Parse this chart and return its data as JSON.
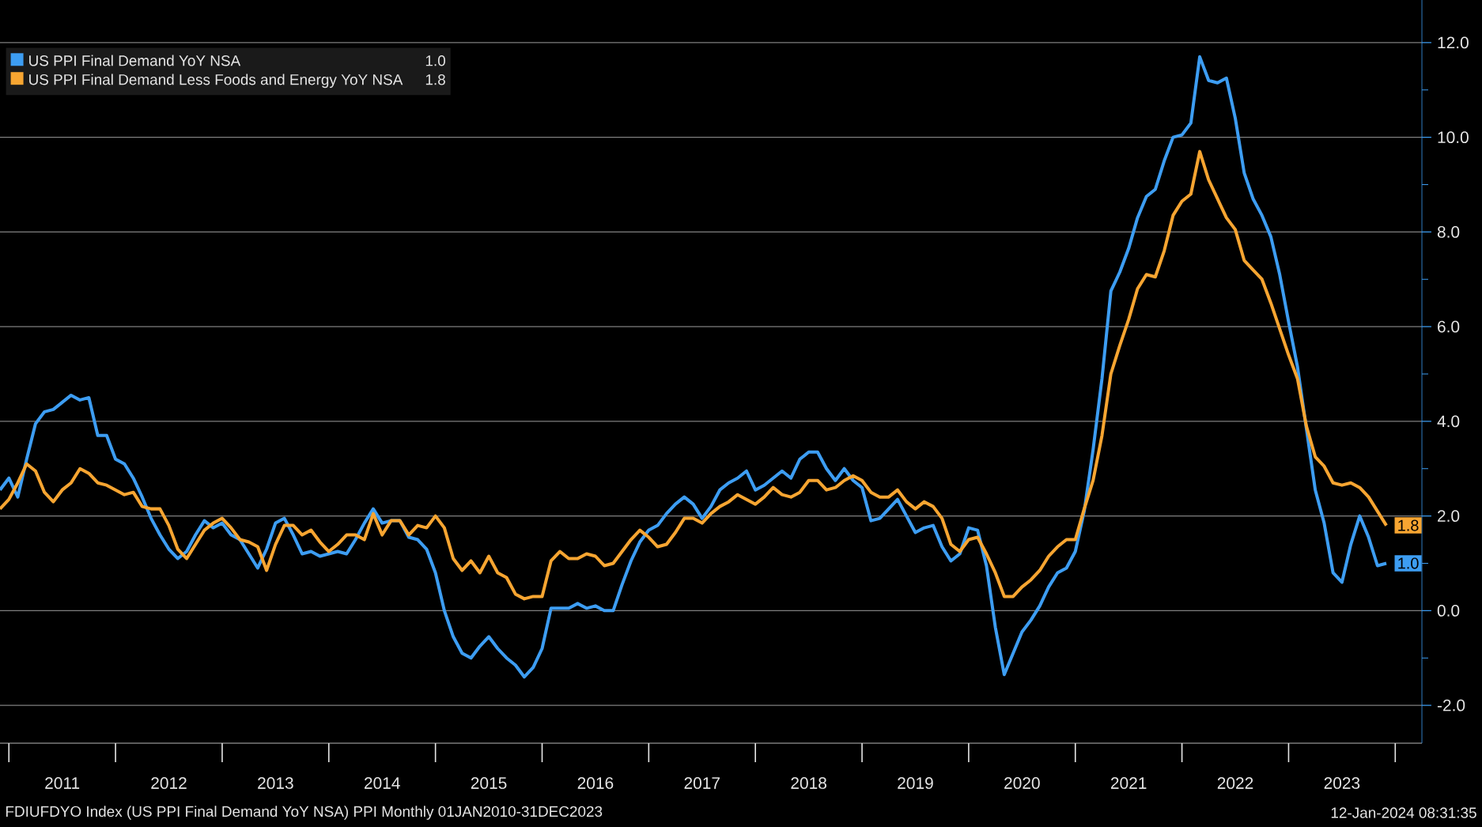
{
  "chart_data": {
    "type": "line",
    "x": [
      "2010-12",
      "2011-01",
      "2011-02",
      "2011-03",
      "2011-04",
      "2011-05",
      "2011-06",
      "2011-07",
      "2011-08",
      "2011-09",
      "2011-10",
      "2011-11",
      "2011-12",
      "2012-01",
      "2012-02",
      "2012-03",
      "2012-04",
      "2012-05",
      "2012-06",
      "2012-07",
      "2012-08",
      "2012-09",
      "2012-10",
      "2012-11",
      "2012-12",
      "2013-01",
      "2013-02",
      "2013-03",
      "2013-04",
      "2013-05",
      "2013-06",
      "2013-07",
      "2013-08",
      "2013-09",
      "2013-10",
      "2013-11",
      "2013-12",
      "2014-01",
      "2014-02",
      "2014-03",
      "2014-04",
      "2014-05",
      "2014-06",
      "2014-07",
      "2014-08",
      "2014-09",
      "2014-10",
      "2014-11",
      "2014-12",
      "2015-01",
      "2015-02",
      "2015-03",
      "2015-04",
      "2015-05",
      "2015-06",
      "2015-07",
      "2015-08",
      "2015-09",
      "2015-10",
      "2015-11",
      "2015-12",
      "2016-01",
      "2016-02",
      "2016-03",
      "2016-04",
      "2016-05",
      "2016-06",
      "2016-07",
      "2016-08",
      "2016-09",
      "2016-10",
      "2016-11",
      "2016-12",
      "2017-01",
      "2017-02",
      "2017-03",
      "2017-04",
      "2017-05",
      "2017-06",
      "2017-07",
      "2017-08",
      "2017-09",
      "2017-10",
      "2017-11",
      "2017-12",
      "2018-01",
      "2018-02",
      "2018-03",
      "2018-04",
      "2018-05",
      "2018-06",
      "2018-07",
      "2018-08",
      "2018-09",
      "2018-10",
      "2018-11",
      "2018-12",
      "2019-01",
      "2019-02",
      "2019-03",
      "2019-04",
      "2019-05",
      "2019-06",
      "2019-07",
      "2019-08",
      "2019-09",
      "2019-10",
      "2019-11",
      "2019-12",
      "2020-01",
      "2020-02",
      "2020-03",
      "2020-04",
      "2020-05",
      "2020-06",
      "2020-07",
      "2020-08",
      "2020-09",
      "2020-10",
      "2020-11",
      "2020-12",
      "2021-01",
      "2021-02",
      "2021-03",
      "2021-04",
      "2021-05",
      "2021-06",
      "2021-07",
      "2021-08",
      "2021-09",
      "2021-10",
      "2021-11",
      "2021-12",
      "2022-01",
      "2022-02",
      "2022-03",
      "2022-04",
      "2022-05",
      "2022-06",
      "2022-07",
      "2022-08",
      "2022-09",
      "2022-10",
      "2022-11",
      "2022-12",
      "2023-01",
      "2023-02",
      "2023-03",
      "2023-04",
      "2023-05",
      "2023-06",
      "2023-07",
      "2023-08",
      "2023-09",
      "2023-10",
      "2023-11",
      "2023-12"
    ],
    "series": [
      {
        "name": "US PPI Final Demand YoY NSA",
        "color": "#3d9df2",
        "values": [
          2.55,
          2.8,
          2.4,
          3.2,
          3.95,
          4.2,
          4.25,
          4.4,
          4.55,
          4.45,
          4.5,
          3.7,
          3.7,
          3.2,
          3.1,
          2.8,
          2.4,
          1.95,
          1.6,
          1.3,
          1.1,
          1.25,
          1.6,
          1.9,
          1.75,
          1.85,
          1.6,
          1.5,
          1.2,
          0.9,
          1.3,
          1.85,
          1.95,
          1.6,
          1.2,
          1.25,
          1.15,
          1.2,
          1.25,
          1.2,
          1.5,
          1.85,
          2.15,
          1.85,
          1.9,
          1.9,
          1.55,
          1.5,
          1.3,
          0.8,
          0.0,
          -0.55,
          -0.9,
          -1.0,
          -0.75,
          -0.55,
          -0.8,
          -1.0,
          -1.15,
          -1.4,
          -1.2,
          -0.8,
          0.05,
          0.05,
          0.05,
          0.15,
          0.05,
          0.1,
          0.0,
          0.0,
          0.55,
          1.05,
          1.45,
          1.7,
          1.8,
          2.05,
          2.25,
          2.4,
          2.25,
          1.95,
          2.2,
          2.55,
          2.7,
          2.8,
          2.95,
          2.55,
          2.65,
          2.8,
          2.95,
          2.8,
          3.2,
          3.35,
          3.35,
          3.0,
          2.75,
          3.0,
          2.75,
          2.6,
          1.9,
          1.95,
          2.15,
          2.35,
          2.0,
          1.65,
          1.75,
          1.8,
          1.35,
          1.05,
          1.2,
          1.75,
          1.7,
          0.95,
          -0.35,
          -1.35,
          -0.9,
          -0.45,
          -0.2,
          0.1,
          0.5,
          0.8,
          0.9,
          1.25,
          2.1,
          3.4,
          4.9,
          6.75,
          7.15,
          7.65,
          8.3,
          8.75,
          8.9,
          9.5,
          10.0,
          10.05,
          10.3,
          11.7,
          11.2,
          11.15,
          11.25,
          10.4,
          9.25,
          8.7,
          8.35,
          7.9,
          7.1,
          6.1,
          5.15,
          3.85,
          2.55,
          1.85,
          0.8,
          0.6,
          1.4,
          2.0,
          1.55,
          0.95,
          1.0
        ],
        "value_labels": [
          null,
          null,
          null,
          null,
          null,
          null,
          null,
          null,
          null,
          null,
          null,
          null,
          null,
          null,
          null,
          null,
          null,
          null,
          null,
          null,
          null,
          null,
          null,
          null,
          null,
          null,
          null,
          null,
          null,
          null,
          null,
          null,
          null,
          null,
          null,
          null,
          null,
          null,
          null,
          null,
          null,
          null,
          null,
          null,
          null,
          null,
          null,
          null,
          null,
          null,
          null,
          null,
          null,
          null,
          null,
          null,
          null,
          null,
          null,
          null,
          null,
          null,
          null,
          null,
          null,
          null,
          null,
          null,
          null,
          null,
          null,
          null,
          null,
          null,
          null,
          null,
          null,
          null,
          null,
          null,
          null,
          null,
          null,
          null,
          null,
          null,
          null,
          null,
          null,
          null,
          null,
          null,
          null,
          null,
          null,
          null,
          null,
          null,
          null,
          null,
          null,
          null,
          null,
          null,
          null,
          null,
          null,
          null,
          null,
          null,
          null,
          null,
          null,
          null,
          null,
          null,
          null,
          null,
          null,
          null,
          null,
          null,
          null,
          null,
          null,
          null,
          null,
          null,
          null,
          null,
          null,
          null,
          null,
          null,
          null,
          null,
          null,
          null,
          null,
          null,
          null,
          null,
          null,
          null,
          null,
          null,
          null,
          null,
          null,
          null,
          null,
          null,
          null,
          null,
          null,
          null,
          "1.0"
        ]
      },
      {
        "name": "US PPI Final Demand Less Foods and Energy YoY NSA",
        "color": "#f7a531",
        "values": [
          2.15,
          2.35,
          2.7,
          3.1,
          2.95,
          2.5,
          2.3,
          2.55,
          2.7,
          3.0,
          2.9,
          2.7,
          2.65,
          2.55,
          2.45,
          2.5,
          2.2,
          2.15,
          2.15,
          1.8,
          1.3,
          1.1,
          1.4,
          1.7,
          1.85,
          1.95,
          1.75,
          1.5,
          1.45,
          1.35,
          0.85,
          1.4,
          1.8,
          1.8,
          1.6,
          1.7,
          1.45,
          1.25,
          1.4,
          1.6,
          1.6,
          1.5,
          2.05,
          1.6,
          1.9,
          1.9,
          1.6,
          1.8,
          1.75,
          2.0,
          1.75,
          1.1,
          0.85,
          1.05,
          0.8,
          1.15,
          0.8,
          0.7,
          0.35,
          0.25,
          0.3,
          0.3,
          1.05,
          1.25,
          1.1,
          1.1,
          1.2,
          1.15,
          0.95,
          1.0,
          1.25,
          1.5,
          1.7,
          1.55,
          1.35,
          1.4,
          1.65,
          1.95,
          1.95,
          1.85,
          2.05,
          2.2,
          2.3,
          2.45,
          2.35,
          2.25,
          2.4,
          2.6,
          2.45,
          2.4,
          2.5,
          2.75,
          2.75,
          2.55,
          2.6,
          2.75,
          2.85,
          2.75,
          2.5,
          2.4,
          2.4,
          2.55,
          2.3,
          2.15,
          2.3,
          2.2,
          1.95,
          1.4,
          1.25,
          1.5,
          1.55,
          1.2,
          0.8,
          0.3,
          0.3,
          0.5,
          0.65,
          0.85,
          1.15,
          1.35,
          1.5,
          1.5,
          2.15,
          2.75,
          3.7,
          5.0,
          5.6,
          6.15,
          6.8,
          7.1,
          7.05,
          7.6,
          8.35,
          8.65,
          8.8,
          9.7,
          9.1,
          8.7,
          8.3,
          8.05,
          7.4,
          7.2,
          7.0,
          6.5,
          5.95,
          5.4,
          4.9,
          3.9,
          3.25,
          3.05,
          2.7,
          2.65,
          2.7,
          2.6,
          2.4,
          2.1,
          1.8
        ],
        "value_labels": [
          null,
          null,
          null,
          null,
          null,
          null,
          null,
          null,
          null,
          null,
          null,
          null,
          null,
          null,
          null,
          null,
          null,
          null,
          null,
          null,
          null,
          null,
          null,
          null,
          null,
          null,
          null,
          null,
          null,
          null,
          null,
          null,
          null,
          null,
          null,
          null,
          null,
          null,
          null,
          null,
          null,
          null,
          null,
          null,
          null,
          null,
          null,
          null,
          null,
          null,
          null,
          null,
          null,
          null,
          null,
          null,
          null,
          null,
          null,
          null,
          null,
          null,
          null,
          null,
          null,
          null,
          null,
          null,
          null,
          null,
          null,
          null,
          null,
          null,
          null,
          null,
          null,
          null,
          null,
          null,
          null,
          null,
          null,
          null,
          null,
          null,
          null,
          null,
          null,
          null,
          null,
          null,
          null,
          null,
          null,
          null,
          null,
          null,
          null,
          null,
          null,
          null,
          null,
          null,
          null,
          null,
          null,
          null,
          null,
          null,
          null,
          null,
          null,
          null,
          null,
          null,
          null,
          null,
          null,
          null,
          null,
          null,
          null,
          null,
          null,
          null,
          null,
          null,
          null,
          null,
          null,
          null,
          null,
          null,
          null,
          null,
          null,
          null,
          null,
          null,
          null,
          null,
          null,
          null,
          null,
          null,
          null,
          null,
          null,
          null,
          null,
          null,
          null,
          null,
          null,
          null,
          "1.8"
        ]
      }
    ],
    "xlim": [
      "2010-12",
      "2024-04"
    ],
    "xticks": [
      {
        "value": "2011-01",
        "label": null
      },
      {
        "value": "2011-07",
        "label": "2011"
      },
      {
        "value": "2012-01",
        "label": null
      },
      {
        "value": "2012-07",
        "label": "2012"
      },
      {
        "value": "2013-01",
        "label": null
      },
      {
        "value": "2013-07",
        "label": "2013"
      },
      {
        "value": "2014-01",
        "label": null
      },
      {
        "value": "2014-07",
        "label": "2014"
      },
      {
        "value": "2015-01",
        "label": null
      },
      {
        "value": "2015-07",
        "label": "2015"
      },
      {
        "value": "2016-01",
        "label": null
      },
      {
        "value": "2016-07",
        "label": "2016"
      },
      {
        "value": "2017-01",
        "label": null
      },
      {
        "value": "2017-07",
        "label": "2017"
      },
      {
        "value": "2018-01",
        "label": null
      },
      {
        "value": "2018-07",
        "label": "2018"
      },
      {
        "value": "2019-01",
        "label": null
      },
      {
        "value": "2019-07",
        "label": "2019"
      },
      {
        "value": "2020-01",
        "label": null
      },
      {
        "value": "2020-07",
        "label": "2020"
      },
      {
        "value": "2021-01",
        "label": null
      },
      {
        "value": "2021-07",
        "label": "2021"
      },
      {
        "value": "2022-01",
        "label": null
      },
      {
        "value": "2022-07",
        "label": "2022"
      },
      {
        "value": "2023-01",
        "label": null
      },
      {
        "value": "2023-07",
        "label": "2023"
      },
      {
        "value": "2024-01",
        "label": null
      }
    ],
    "ylim": [
      -2.8,
      12.9
    ],
    "yticks": [
      {
        "value": -2,
        "label": "-2.0"
      },
      {
        "value": -1,
        "label": null
      },
      {
        "value": 0,
        "label": "0.0"
      },
      {
        "value": 1,
        "label": null
      },
      {
        "value": 2,
        "label": "2.0"
      },
      {
        "value": 3,
        "label": null
      },
      {
        "value": 4,
        "label": "4.0"
      },
      {
        "value": 5,
        "label": null
      },
      {
        "value": 6,
        "label": "6.0"
      },
      {
        "value": 7,
        "label": null
      },
      {
        "value": 8,
        "label": "8.0"
      },
      {
        "value": 9,
        "label": null
      },
      {
        "value": 10,
        "label": "10.0"
      },
      {
        "value": 11,
        "label": null
      },
      {
        "value": 12,
        "label": "12.0"
      }
    ],
    "grid": "y",
    "legend": "top left",
    "annotations": [
      "FDIUFDYO Index (US PPI Final Demand YoY NSA) PPI  Monthly 01JAN2010-31DEC2023",
      "12-Jan-2024 08:31:35"
    ]
  }
}
